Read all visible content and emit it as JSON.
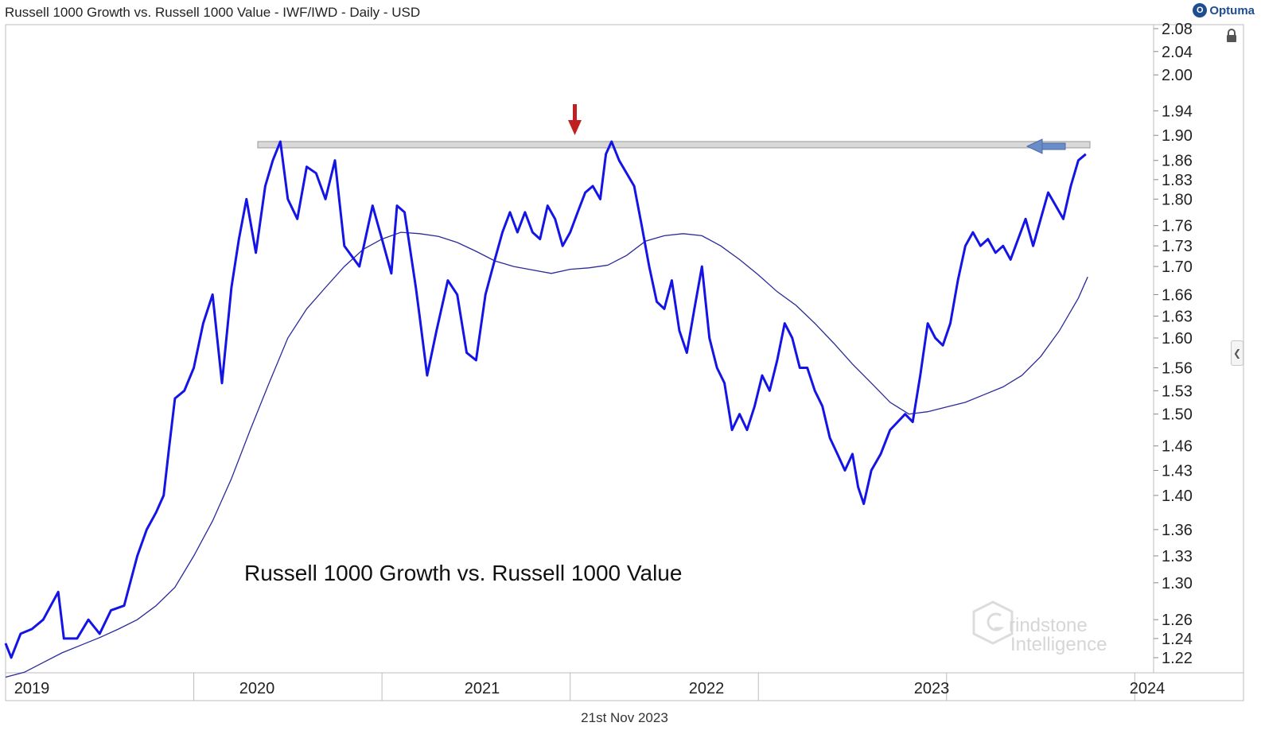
{
  "header": {
    "title": "Russell 1000 Growth vs. Russell 1000 Value - IWF/IWD - Daily - USD",
    "brand": "Optuma",
    "brand_mark": "O"
  },
  "footer": {
    "date": "21st Nov 2023"
  },
  "watermark": {
    "line1": "rindstone",
    "line2": "Intelligence"
  },
  "colors": {
    "price_line": "#1414e6",
    "ma_line": "#2a2a9a",
    "resistance_band": "#d9d9d9",
    "down_arrow": "#c02020",
    "left_arrow": "#6a8dc8"
  },
  "icons": {
    "lock": "lock-icon",
    "collapse": "chevron-left-icon"
  },
  "chart_data": {
    "type": "line",
    "title": "Russell 1000 Growth vs. Russell 1000 Value",
    "scale": "log",
    "ylim": [
      1.19,
      2.08
    ],
    "y_ticks": [
      2.08,
      2.04,
      2.0,
      1.94,
      1.9,
      1.86,
      1.83,
      1.8,
      1.76,
      1.73,
      1.7,
      1.66,
      1.63,
      1.6,
      1.56,
      1.53,
      1.5,
      1.46,
      1.43,
      1.4,
      1.36,
      1.33,
      1.3,
      1.26,
      1.24,
      1.22
    ],
    "x_ticks": [
      "2019",
      "2020",
      "2021",
      "2022",
      "2023",
      "2024"
    ],
    "grid": false,
    "resistance_level": 1.885,
    "annotations": [
      "down arrow at 2021 high",
      "left arrow at current level"
    ],
    "series": [
      {
        "points": [
          [
            2019.0,
            1.235
          ],
          [
            2019.03,
            1.22
          ],
          [
            2019.08,
            1.245
          ],
          [
            2019.14,
            1.25
          ],
          [
            2019.2,
            1.26
          ],
          [
            2019.28,
            1.29
          ],
          [
            2019.31,
            1.24
          ],
          [
            2019.38,
            1.24
          ],
          [
            2019.44,
            1.26
          ],
          [
            2019.5,
            1.245
          ],
          [
            2019.56,
            1.27
          ],
          [
            2019.63,
            1.275
          ],
          [
            2019.7,
            1.33
          ],
          [
            2019.75,
            1.36
          ],
          [
            2019.8,
            1.38
          ],
          [
            2019.84,
            1.4
          ],
          [
            2019.87,
            1.46
          ],
          [
            2019.9,
            1.52
          ],
          [
            2019.95,
            1.53
          ],
          [
            2020.0,
            1.56
          ],
          [
            2020.05,
            1.62
          ],
          [
            2020.1,
            1.66
          ],
          [
            2020.15,
            1.54
          ],
          [
            2020.2,
            1.67
          ],
          [
            2020.24,
            1.74
          ],
          [
            2020.28,
            1.8
          ],
          [
            2020.33,
            1.72
          ],
          [
            2020.38,
            1.82
          ],
          [
            2020.42,
            1.86
          ],
          [
            2020.46,
            1.89
          ],
          [
            2020.5,
            1.8
          ],
          [
            2020.55,
            1.77
          ],
          [
            2020.6,
            1.85
          ],
          [
            2020.65,
            1.84
          ],
          [
            2020.7,
            1.8
          ],
          [
            2020.75,
            1.86
          ],
          [
            2020.8,
            1.73
          ],
          [
            2020.88,
            1.7
          ],
          [
            2020.95,
            1.79
          ],
          [
            2021.0,
            1.74
          ],
          [
            2021.05,
            1.69
          ],
          [
            2021.08,
            1.79
          ],
          [
            2021.12,
            1.78
          ],
          [
            2021.18,
            1.67
          ],
          [
            2021.2,
            1.63
          ],
          [
            2021.24,
            1.55
          ],
          [
            2021.29,
            1.61
          ],
          [
            2021.35,
            1.68
          ],
          [
            2021.4,
            1.66
          ],
          [
            2021.45,
            1.58
          ],
          [
            2021.5,
            1.57
          ],
          [
            2021.55,
            1.66
          ],
          [
            2021.6,
            1.71
          ],
          [
            2021.64,
            1.75
          ],
          [
            2021.68,
            1.78
          ],
          [
            2021.72,
            1.75
          ],
          [
            2021.76,
            1.78
          ],
          [
            2021.8,
            1.75
          ],
          [
            2021.84,
            1.74
          ],
          [
            2021.88,
            1.79
          ],
          [
            2021.92,
            1.77
          ],
          [
            2021.96,
            1.73
          ],
          [
            2022.0,
            1.75
          ],
          [
            2022.04,
            1.78
          ],
          [
            2022.08,
            1.81
          ],
          [
            2022.12,
            1.82
          ],
          [
            2022.16,
            1.8
          ],
          [
            2022.19,
            1.87
          ],
          [
            2022.22,
            1.89
          ],
          [
            2022.26,
            1.86
          ],
          [
            2022.3,
            1.84
          ],
          [
            2022.34,
            1.82
          ],
          [
            2022.38,
            1.76
          ],
          [
            2022.42,
            1.7
          ],
          [
            2022.46,
            1.65
          ],
          [
            2022.5,
            1.64
          ],
          [
            2022.54,
            1.68
          ],
          [
            2022.58,
            1.61
          ],
          [
            2022.62,
            1.58
          ],
          [
            2022.66,
            1.64
          ],
          [
            2022.7,
            1.7
          ],
          [
            2022.74,
            1.6
          ],
          [
            2022.78,
            1.56
          ],
          [
            2022.82,
            1.54
          ],
          [
            2022.86,
            1.48
          ],
          [
            2022.9,
            1.5
          ],
          [
            2022.94,
            1.48
          ],
          [
            2022.98,
            1.51
          ],
          [
            2023.02,
            1.55
          ],
          [
            2023.06,
            1.53
          ],
          [
            2023.1,
            1.57
          ],
          [
            2023.14,
            1.62
          ],
          [
            2023.18,
            1.6
          ],
          [
            2023.22,
            1.56
          ],
          [
            2023.26,
            1.56
          ],
          [
            2023.3,
            1.53
          ],
          [
            2023.34,
            1.51
          ],
          [
            2023.38,
            1.47
          ],
          [
            2023.42,
            1.45
          ],
          [
            2023.46,
            1.43
          ],
          [
            2023.5,
            1.45
          ],
          [
            2023.53,
            1.41
          ],
          [
            2023.56,
            1.39
          ],
          [
            2023.6,
            1.43
          ],
          [
            2023.65,
            1.45
          ],
          [
            2023.7,
            1.48
          ],
          [
            2023.74,
            1.49
          ],
          [
            2023.78,
            1.5
          ],
          [
            2023.82,
            1.49
          ],
          [
            2023.86,
            1.55
          ],
          [
            2023.9,
            1.62
          ],
          [
            2023.94,
            1.6
          ],
          [
            2023.98,
            1.59
          ],
          [
            2024.02,
            1.62
          ],
          [
            2024.06,
            1.68
          ],
          [
            2024.1,
            1.73
          ],
          [
            2024.14,
            1.75
          ],
          [
            2024.18,
            1.73
          ],
          [
            2024.22,
            1.74
          ],
          [
            2024.26,
            1.72
          ],
          [
            2024.3,
            1.73
          ],
          [
            2024.34,
            1.71
          ],
          [
            2024.38,
            1.74
          ],
          [
            2024.42,
            1.77
          ],
          [
            2024.46,
            1.73
          ],
          [
            2024.5,
            1.77
          ],
          [
            2024.54,
            1.81
          ],
          [
            2024.58,
            1.79
          ],
          [
            2024.62,
            1.77
          ],
          [
            2024.66,
            1.82
          ],
          [
            2024.7,
            1.86
          ],
          [
            2024.74,
            1.87
          ]
        ]
      },
      {
        "points": [
          [
            2019.0,
            1.2
          ],
          [
            2019.1,
            1.205
          ],
          [
            2019.2,
            1.215
          ],
          [
            2019.3,
            1.225
          ],
          [
            2019.4,
            1.233
          ],
          [
            2019.5,
            1.241
          ],
          [
            2019.6,
            1.25
          ],
          [
            2019.7,
            1.26
          ],
          [
            2019.8,
            1.275
          ],
          [
            2019.9,
            1.295
          ],
          [
            2020.0,
            1.33
          ],
          [
            2020.1,
            1.37
          ],
          [
            2020.2,
            1.42
          ],
          [
            2020.3,
            1.48
          ],
          [
            2020.4,
            1.54
          ],
          [
            2020.5,
            1.6
          ],
          [
            2020.6,
            1.64
          ],
          [
            2020.7,
            1.67
          ],
          [
            2020.8,
            1.7
          ],
          [
            2020.9,
            1.725
          ],
          [
            2021.0,
            1.74
          ],
          [
            2021.1,
            1.75
          ],
          [
            2021.2,
            1.748
          ],
          [
            2021.3,
            1.744
          ],
          [
            2021.4,
            1.735
          ],
          [
            2021.5,
            1.722
          ],
          [
            2021.6,
            1.708
          ],
          [
            2021.7,
            1.7
          ],
          [
            2021.8,
            1.695
          ],
          [
            2021.9,
            1.69
          ],
          [
            2022.0,
            1.696
          ],
          [
            2022.1,
            1.698
          ],
          [
            2022.2,
            1.702
          ],
          [
            2022.3,
            1.716
          ],
          [
            2022.4,
            1.737
          ],
          [
            2022.5,
            1.745
          ],
          [
            2022.6,
            1.748
          ],
          [
            2022.7,
            1.745
          ],
          [
            2022.8,
            1.73
          ],
          [
            2022.9,
            1.71
          ],
          [
            2023.0,
            1.688
          ],
          [
            2023.1,
            1.664
          ],
          [
            2023.2,
            1.645
          ],
          [
            2023.3,
            1.62
          ],
          [
            2023.4,
            1.593
          ],
          [
            2023.5,
            1.565
          ],
          [
            2023.6,
            1.54
          ],
          [
            2023.7,
            1.515
          ],
          [
            2023.8,
            1.5
          ],
          [
            2023.9,
            1.503
          ],
          [
            2024.0,
            1.509
          ],
          [
            2024.1,
            1.515
          ],
          [
            2024.2,
            1.525
          ],
          [
            2024.3,
            1.535
          ],
          [
            2024.4,
            1.55
          ],
          [
            2024.5,
            1.575
          ],
          [
            2024.6,
            1.61
          ],
          [
            2024.7,
            1.655
          ],
          [
            2024.75,
            1.685
          ]
        ]
      }
    ]
  }
}
